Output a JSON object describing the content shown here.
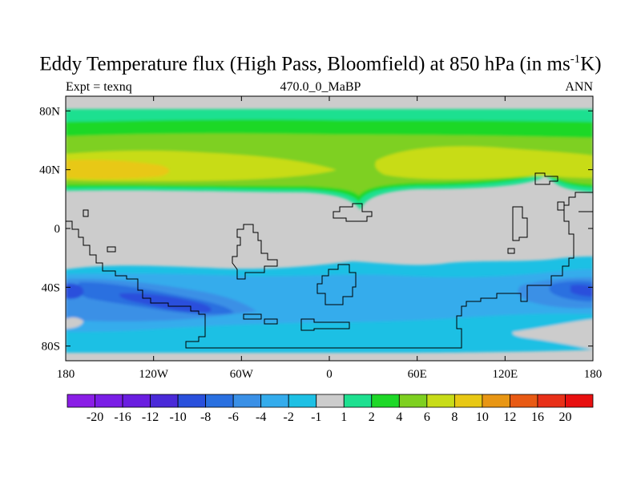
{
  "title": {
    "prefix": "Eddy Temperature flux (High Pass, Bloomfield) at 850 hPa (in ms",
    "sup": "-1",
    "suffix": "K)"
  },
  "subtitle": {
    "left": "Expt = texnq",
    "center": "470.0_0_MaBP",
    "right": "ANN"
  },
  "chart_data": {
    "type": "heatmap",
    "title": "Eddy Temperature flux (High Pass, Bloomfield) at 850 hPa (in ms-1K)",
    "xlim": [
      -180,
      180
    ],
    "ylim": [
      -90,
      90
    ],
    "xticks": [
      {
        "value": -180,
        "label": "180"
      },
      {
        "value": -120,
        "label": "120W"
      },
      {
        "value": -60,
        "label": "60W"
      },
      {
        "value": 0,
        "label": "0"
      },
      {
        "value": 60,
        "label": "60E"
      },
      {
        "value": 120,
        "label": "120E"
      },
      {
        "value": 180,
        "label": "180"
      }
    ],
    "yticks": [
      {
        "value": 80,
        "label": "80N"
      },
      {
        "value": 40,
        "label": "40N"
      },
      {
        "value": 0,
        "label": "0"
      },
      {
        "value": -40,
        "label": "40S"
      },
      {
        "value": -80,
        "label": "80S"
      }
    ],
    "colorbar": {
      "labels": [
        "-20",
        "-16",
        "-12",
        "-10",
        "-8",
        "-6",
        "-4",
        "-2",
        "-1",
        "1",
        "2",
        "4",
        "6",
        "8",
        "10",
        "12",
        "16",
        "20"
      ],
      "colors": [
        "#8a1ee6",
        "#7a1ee6",
        "#6a1ee0",
        "#4a2ad8",
        "#2a50dc",
        "#2a70e0",
        "#3a90e6",
        "#34acec",
        "#1ec0e4",
        "#cccccc",
        "#1ee090",
        "#1ed828",
        "#7ed020",
        "#c8dc18",
        "#e8c814",
        "#e89614",
        "#e85a14",
        "#e83018",
        "#e81010"
      ]
    },
    "contours": {
      "nh_bands": [
        {
          "lat_north": 75,
          "lat_south": 65,
          "level": "1 to 2",
          "color": "#1ee090"
        },
        {
          "lat_north": 65,
          "lat_south": 55,
          "level": "2 to 4",
          "color": "#1ed828"
        },
        {
          "lat_north": 55,
          "lat_south": 25,
          "level": "4 to 6",
          "color": "#7ed020"
        },
        {
          "lat_north": 50,
          "lat_south": 33,
          "level": "6 to 8",
          "color": "#c8dc18"
        },
        {
          "lat_north": 44,
          "lat_south": 36,
          "level": "8 to 10",
          "color": "#e8c814"
        }
      ],
      "sh_bands": [
        {
          "lat_north": -28,
          "lat_south": -86,
          "level": "-2 to -1",
          "color": "#1ec0e4"
        },
        {
          "lat_north": -32,
          "lat_south": -65,
          "level": "-4 to -2",
          "color": "#34acec"
        },
        {
          "lat_north": -38,
          "lat_south": -58,
          "level": "-6 to -4",
          "color": "#3a90e6"
        },
        {
          "lat_north": -42,
          "lat_south": -54,
          "level": "-8 to -6",
          "color": "#2a70e0"
        },
        {
          "lat_north": -45,
          "lat_south": -52,
          "level": "-10 to -8",
          "color": "#2a50dc"
        }
      ]
    }
  }
}
